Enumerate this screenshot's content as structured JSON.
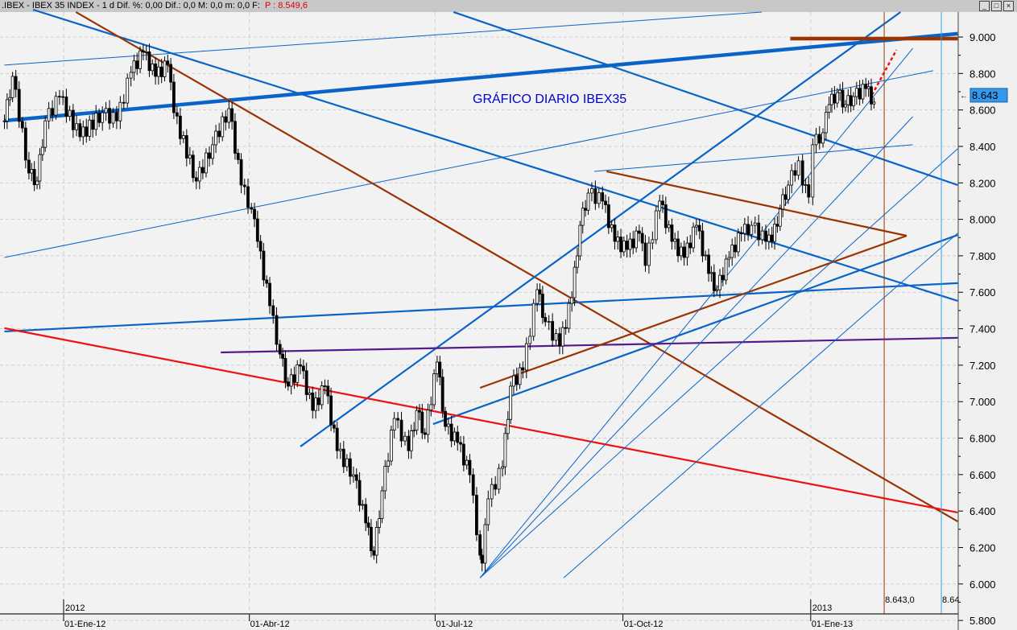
{
  "window": {
    "title": ".IBEX - IBEX 35 INDEX - 1 d Dif. %: 0,00 Dif.: 0,0 M: 0,0 m: 0,0 F:",
    "price_readout": "P : 8.549,6",
    "buttons": [
      "_",
      "□",
      "×"
    ]
  },
  "chart_data": {
    "type": "candlestick",
    "title": "GRÁFICO DIARIO IBEX35",
    "ylim": [
      5800,
      9000
    ],
    "y_ticks": [
      "9.000",
      "8.800",
      "8.600",
      "8.400",
      "8.200",
      "8.000",
      "7.800",
      "7.600",
      "7.400",
      "7.200",
      "7.000",
      "6.800",
      "6.600",
      "6.400",
      "6.200",
      "6.000",
      "5.800"
    ],
    "y_tick_values": [
      9000,
      8800,
      8600,
      8400,
      8200,
      8000,
      7800,
      7600,
      7400,
      7200,
      7000,
      6800,
      6600,
      6400,
      6200,
      6000,
      5800
    ],
    "x_ticks": [
      {
        "date": "2012-01-01",
        "label": "01-Ene-12"
      },
      {
        "date": "2012-04-01",
        "label": "01-Abr-12"
      },
      {
        "date": "2012-07-01",
        "label": "01-Jul-12"
      },
      {
        "date": "2012-10-01",
        "label": "01-Oct-12"
      },
      {
        "date": "2013-01-01",
        "label": "01-Ene-13"
      }
    ],
    "year_labels": [
      {
        "date": "2012-01-01",
        "label": "2012"
      },
      {
        "date": "2013-01-01",
        "label": "2013"
      }
    ],
    "grid": true,
    "last_price_label": "8.643",
    "cursor_lines": [
      {
        "date": "2013-02-06",
        "label": "8.643,0",
        "color": "#993300"
      },
      {
        "date": "2013-03-06",
        "label": "8.64",
        "color": "#33a0e0"
      }
    ],
    "colors": {
      "up": "#ffffff",
      "down": "#000000",
      "blue": "#0a64c8",
      "brown": "#993300",
      "red": "#ee1111",
      "purple": "#551a8b",
      "last_price_bg": "#3399ee"
    },
    "closes": [
      [
        "2011-12-03",
        8540
      ],
      [
        "2011-12-07",
        8784
      ],
      [
        "2011-12-15",
        8254
      ],
      [
        "2011-12-19",
        8210
      ],
      [
        "2011-12-23",
        8540
      ],
      [
        "2011-12-30",
        8673
      ],
      [
        "2012-01-09",
        8453
      ],
      [
        "2012-01-20",
        8585
      ],
      [
        "2012-01-27",
        8540
      ],
      [
        "2012-02-03",
        8806
      ],
      [
        "2012-02-09",
        8917
      ],
      [
        "2012-02-15",
        8784
      ],
      [
        "2012-02-21",
        8850
      ],
      [
        "2012-02-24",
        8585
      ],
      [
        "2012-03-06",
        8210
      ],
      [
        "2012-03-14",
        8409
      ],
      [
        "2012-03-22",
        8607
      ],
      [
        "2012-03-28",
        8188
      ],
      [
        "2012-04-02",
        8056
      ],
      [
        "2012-04-05",
        7879
      ],
      [
        "2012-04-11",
        7526
      ],
      [
        "2012-04-16",
        7261
      ],
      [
        "2012-04-20",
        7085
      ],
      [
        "2012-04-26",
        7195
      ],
      [
        "2012-05-02",
        6952
      ],
      [
        "2012-05-08",
        7085
      ],
      [
        "2012-05-14",
        6731
      ],
      [
        "2012-05-22",
        6599
      ],
      [
        "2012-05-28",
        6335
      ],
      [
        "2012-06-01",
        6158
      ],
      [
        "2012-06-05",
        6511
      ],
      [
        "2012-06-11",
        6908
      ],
      [
        "2012-06-18",
        6731
      ],
      [
        "2012-06-22",
        6952
      ],
      [
        "2012-06-26",
        6820
      ],
      [
        "2012-07-02",
        7217
      ],
      [
        "2012-07-06",
        6864
      ],
      [
        "2012-07-12",
        6776
      ],
      [
        "2012-07-18",
        6599
      ],
      [
        "2012-07-23",
        6158
      ],
      [
        "2012-07-24",
        6114
      ],
      [
        "2012-07-27",
        6467
      ],
      [
        "2012-08-03",
        6643
      ],
      [
        "2012-08-07",
        7085
      ],
      [
        "2012-08-13",
        7173
      ],
      [
        "2012-08-20",
        7614
      ],
      [
        "2012-08-24",
        7438
      ],
      [
        "2012-08-31",
        7305
      ],
      [
        "2012-09-06",
        7570
      ],
      [
        "2012-09-10",
        7967
      ],
      [
        "2012-09-14",
        8144
      ],
      [
        "2012-09-21",
        8100
      ],
      [
        "2012-09-27",
        7879
      ],
      [
        "2012-10-03",
        7835
      ],
      [
        "2012-10-09",
        7923
      ],
      [
        "2012-10-12",
        7747
      ],
      [
        "2012-10-19",
        8100
      ],
      [
        "2012-10-25",
        7879
      ],
      [
        "2012-10-31",
        7791
      ],
      [
        "2012-11-06",
        7967
      ],
      [
        "2012-11-12",
        7703
      ],
      [
        "2012-11-16",
        7614
      ],
      [
        "2012-11-22",
        7791
      ],
      [
        "2012-11-28",
        7923
      ],
      [
        "2012-12-03",
        7967
      ],
      [
        "2012-12-10",
        7879
      ],
      [
        "2012-12-13",
        7879
      ],
      [
        "2012-12-17",
        8056
      ],
      [
        "2012-12-21",
        8188
      ],
      [
        "2012-12-26",
        8321
      ],
      [
        "2012-12-28",
        8188
      ],
      [
        "2012-12-31",
        8122
      ],
      [
        "2013-01-02",
        8409
      ],
      [
        "2013-01-07",
        8475
      ],
      [
        "2013-01-10",
        8629
      ],
      [
        "2013-01-14",
        8695
      ],
      [
        "2013-01-18",
        8629
      ],
      [
        "2013-01-22",
        8673
      ],
      [
        "2013-01-28",
        8717
      ],
      [
        "2013-02-01",
        8643
      ]
    ],
    "trendlines": [
      {
        "from": [
          "2011-12-03",
          8541
        ],
        "to": [
          "2013-03-14",
          9018
        ],
        "color": "#0a64c8",
        "weight": "heavy"
      },
      {
        "from": [
          "2011-12-03",
          8846
        ],
        "to": [
          "2012-12-08",
          9137
        ],
        "color": "#0a64c8",
        "weight": "thin"
      },
      {
        "from": [
          "2011-12-17",
          9150
        ],
        "to": [
          "2013-03-14",
          7553
        ],
        "color": "#0a64c8",
        "weight": "medium"
      },
      {
        "from": [
          "2011-12-03",
          7791
        ],
        "to": [
          "2013-03-02",
          8815
        ],
        "color": "#0a64c8",
        "weight": "thin"
      },
      {
        "from": [
          "2012-01-07",
          9137
        ],
        "to": [
          "2013-03-14",
          6343
        ],
        "color": "#993300",
        "weight": "medium"
      },
      {
        "from": [
          "2012-07-10",
          9137
        ],
        "to": [
          "2013-03-14",
          8188
        ],
        "color": "#0a64c8",
        "weight": "medium"
      },
      {
        "from": [
          "2012-04-26",
          6754
        ],
        "to": [
          "2013-02-14",
          9137
        ],
        "color": "#0a64c8",
        "weight": "medium"
      },
      {
        "from": [
          "2012-06-30",
          6877
        ],
        "to": [
          "2013-03-14",
          7914
        ],
        "color": "#0a64c8",
        "weight": "medium"
      },
      {
        "from": [
          "2011-12-03",
          7385
        ],
        "to": [
          "2013-03-14",
          7650
        ],
        "color": "#0a64c8",
        "weight": "medium"
      },
      {
        "from": [
          "2012-03-18",
          7270
        ],
        "to": [
          "2013-03-14",
          7350
        ],
        "color": "#551a8b",
        "weight": "medium"
      },
      {
        "from": [
          "2011-12-03",
          7403
        ],
        "to": [
          "2013-03-14",
          6392
        ],
        "color": "#ee1111",
        "weight": "medium"
      },
      {
        "from": [
          "2012-07-23",
          7076
        ],
        "to": [
          "2013-02-17",
          7910
        ],
        "color": "#993300",
        "weight": "medium"
      },
      {
        "from": [
          "2012-09-23",
          8263
        ],
        "to": [
          "2013-02-17",
          7910
        ],
        "color": "#993300",
        "weight": "medium"
      },
      {
        "from": [
          "2012-09-17",
          8263
        ],
        "to": [
          "2013-02-20",
          8409
        ],
        "color": "#0a64c8",
        "weight": "thin"
      },
      {
        "from": [
          "2012-12-22",
          8991
        ],
        "to": [
          "2013-03-14",
          8991
        ],
        "color": "#993300",
        "weight": "heavy"
      },
      {
        "from": [
          "2012-07-23",
          6034
        ],
        "to": [
          "2013-02-20",
          8938
        ],
        "color": "#0a64c8",
        "weight": "thin"
      },
      {
        "from": [
          "2012-07-23",
          6034
        ],
        "to": [
          "2013-02-20",
          8563
        ],
        "color": "#0a64c8",
        "weight": "thin"
      },
      {
        "from": [
          "2012-07-23",
          6034
        ],
        "to": [
          "2013-03-14",
          8387
        ],
        "color": "#0a64c8",
        "weight": "thin"
      },
      {
        "from": [
          "2012-09-02",
          6034
        ],
        "to": [
          "2013-03-14",
          7924
        ],
        "color": "#0a64c8",
        "weight": "thin"
      },
      {
        "from": [
          "2013-01-31",
          8682
        ],
        "to": [
          "2013-02-12",
          8929
        ],
        "color": "#ee1111",
        "weight": "dashed"
      }
    ]
  }
}
